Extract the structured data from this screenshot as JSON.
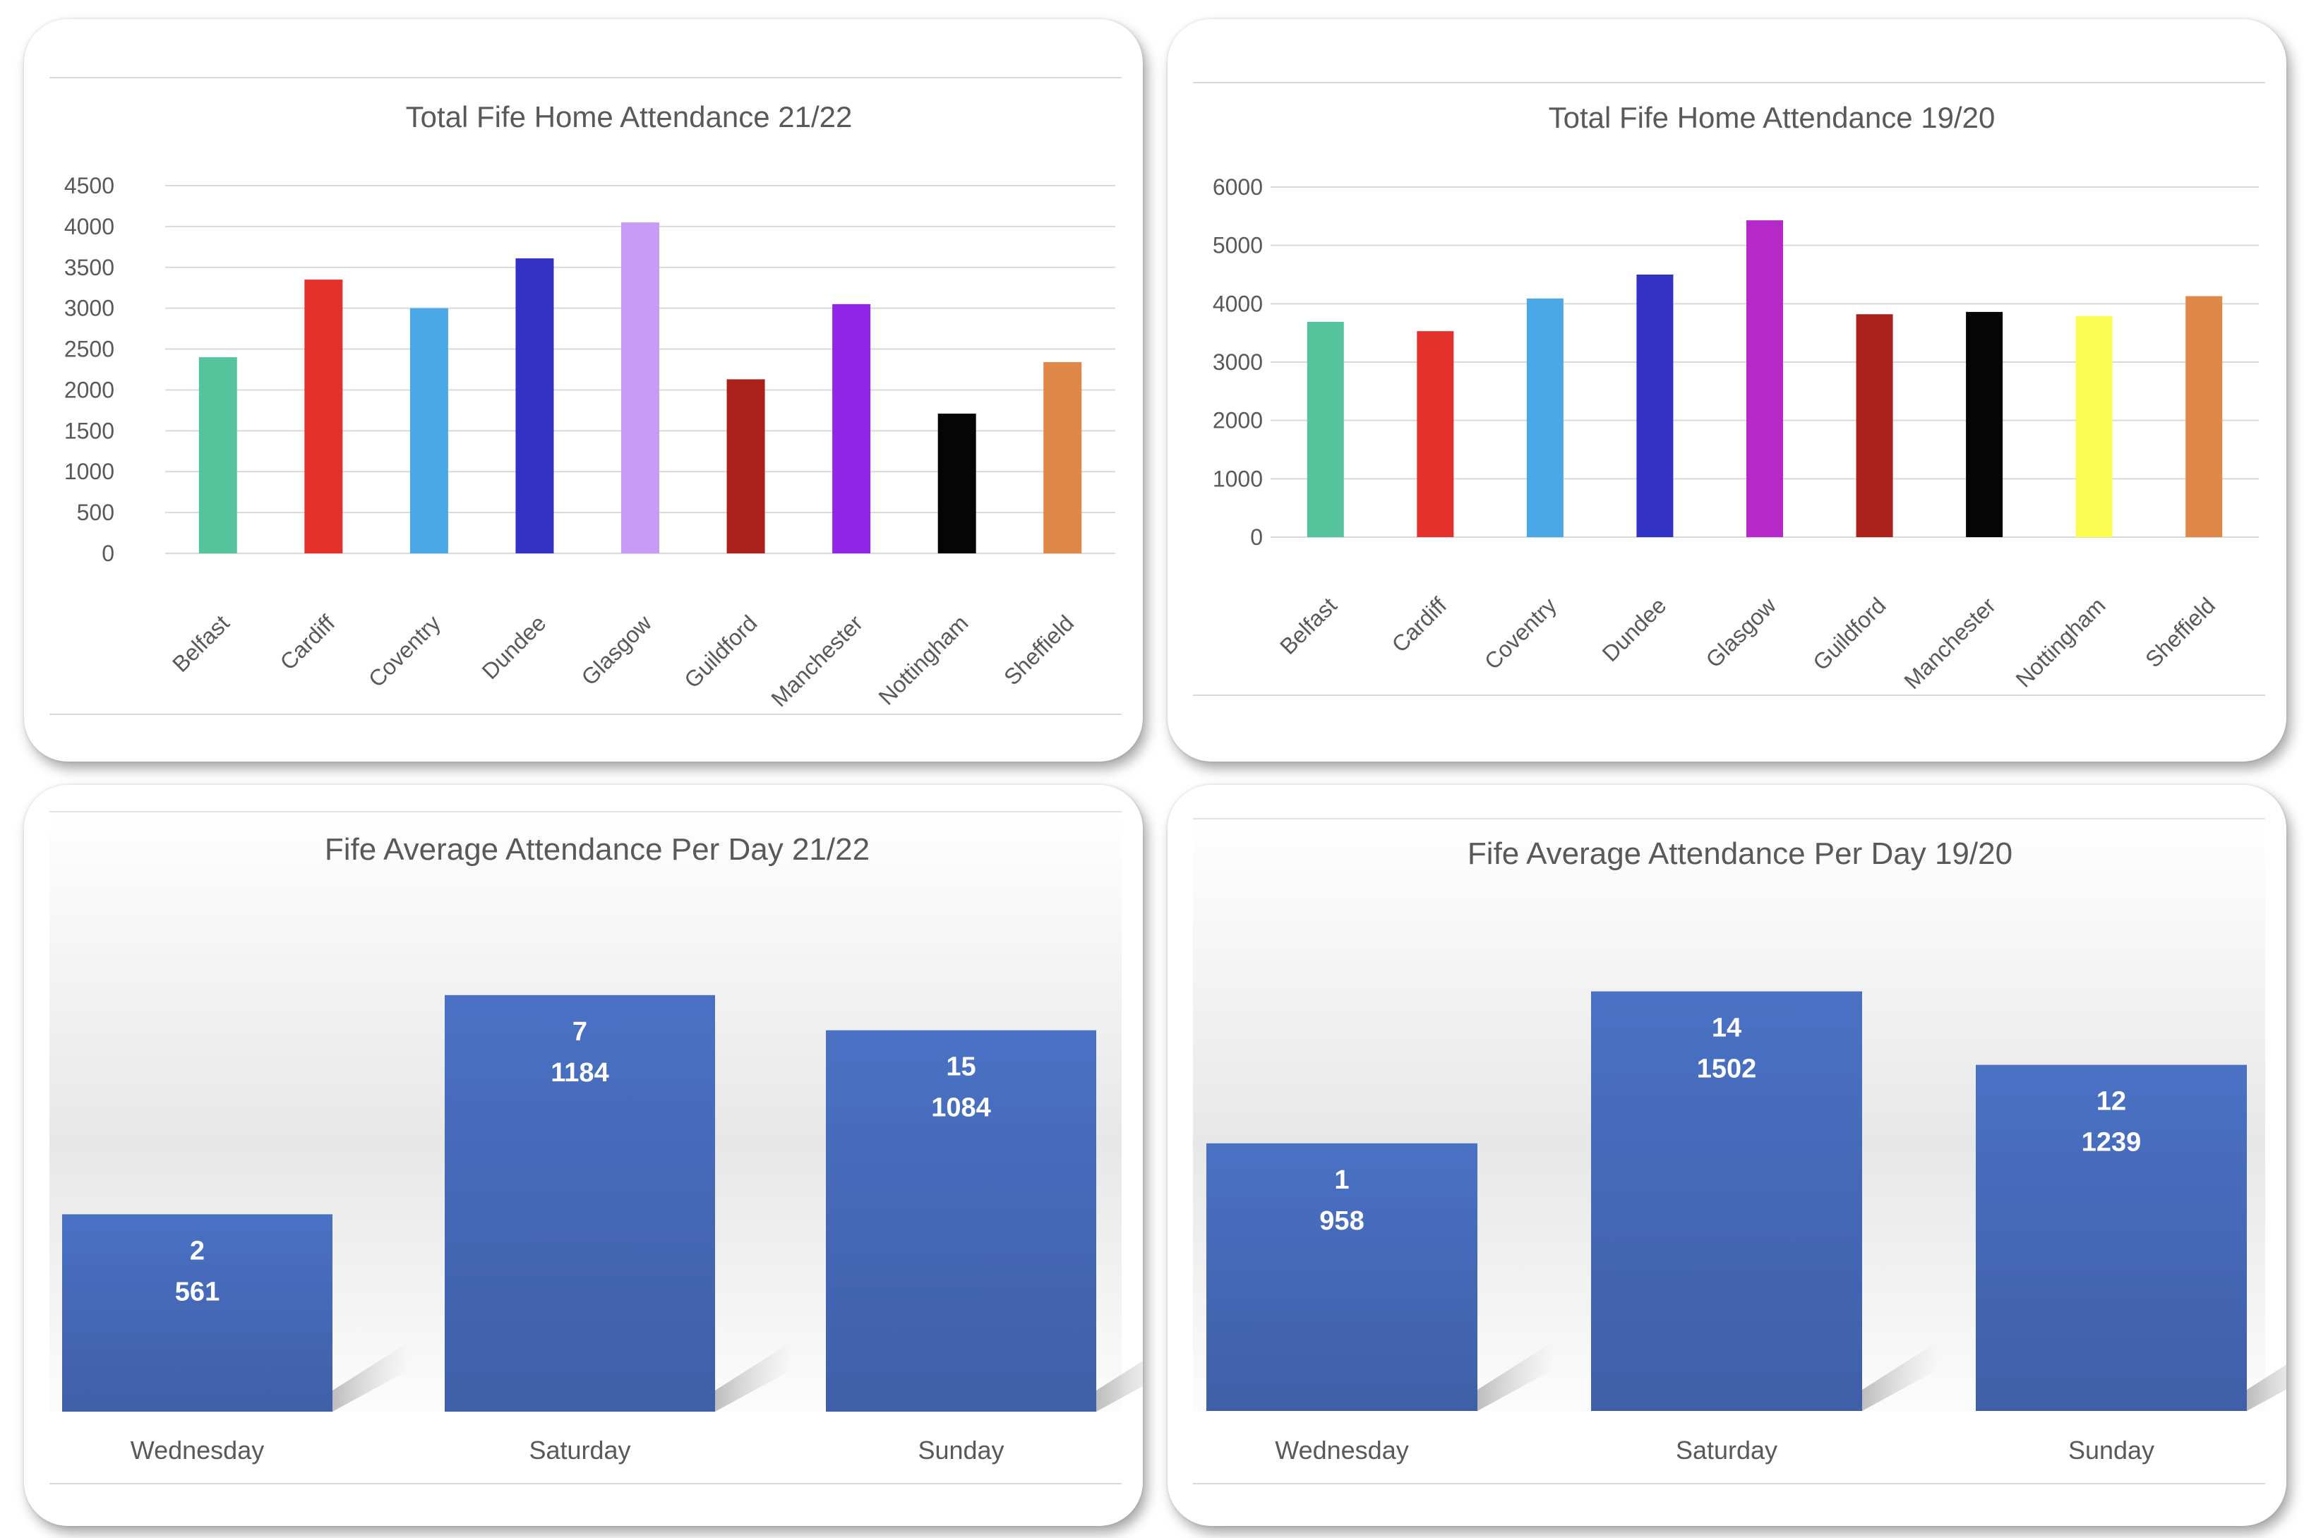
{
  "chart_data": [
    {
      "type": "bar",
      "title": "Total Fife Home Attendance 21/22",
      "categories": [
        "Belfast",
        "Cardiff",
        "Coventry",
        "Dundee",
        "Glasgow",
        "Guildford",
        "Manchester",
        "Nottingham",
        "Sheffield"
      ],
      "values": [
        2400,
        3350,
        3000,
        3610,
        4050,
        2130,
        3050,
        1710,
        2340
      ],
      "colors": [
        "#55c39c",
        "#e3302a",
        "#4aa8e6",
        "#3232c4",
        "#c89cf4",
        "#ab201b",
        "#9125e8",
        "#050505",
        "#e0874a"
      ],
      "y_ticks": [
        "0",
        "500",
        "1000",
        "1500",
        "2000",
        "2500",
        "3000",
        "3500",
        "4000",
        "4500"
      ],
      "ylim": [
        0,
        4500
      ],
      "xlabel": "",
      "ylabel": "",
      "grid": true
    },
    {
      "type": "bar",
      "title": "Total Fife Home Attendance 19/20",
      "categories": [
        "Belfast",
        "Cardiff",
        "Coventry",
        "Dundee",
        "Glasgow",
        "Guildford",
        "Manchester",
        "Nottingham",
        "Sheffield"
      ],
      "values": [
        3690,
        3530,
        4090,
        4500,
        5430,
        3820,
        3860,
        3790,
        4130
      ],
      "colors": [
        "#55c39c",
        "#e3302a",
        "#4aa8e6",
        "#3232c4",
        "#b628c8",
        "#ab201b",
        "#050505",
        "#fbfb52",
        "#e0874a"
      ],
      "y_ticks": [
        "0",
        "1000",
        "2000",
        "3000",
        "4000",
        "5000",
        "6000"
      ],
      "ylim": [
        0,
        6000
      ],
      "xlabel": "",
      "ylabel": "",
      "grid": true
    },
    {
      "type": "bar",
      "title": "Fife Average Attendance Per Day 21/22",
      "categories": [
        "Wednesday",
        "Saturday",
        "Sunday"
      ],
      "values": [
        561,
        1184,
        1084
      ],
      "counts": [
        "2",
        "7",
        "15"
      ],
      "value_labels": [
        "561",
        "1184",
        "1084"
      ],
      "ylim": [
        0,
        1300
      ],
      "xlabel": "",
      "ylabel": "",
      "grid": false
    },
    {
      "type": "bar",
      "title": "Fife Average Attendance Per Day 19/20",
      "categories": [
        "Wednesday",
        "Saturday",
        "Sunday"
      ],
      "values": [
        958,
        1502,
        1239
      ],
      "counts": [
        "1",
        "14",
        "12"
      ],
      "value_labels": [
        "958",
        "1502",
        "1239"
      ],
      "ylim": [
        0,
        1650
      ],
      "xlabel": "",
      "ylabel": "",
      "grid": false
    }
  ]
}
